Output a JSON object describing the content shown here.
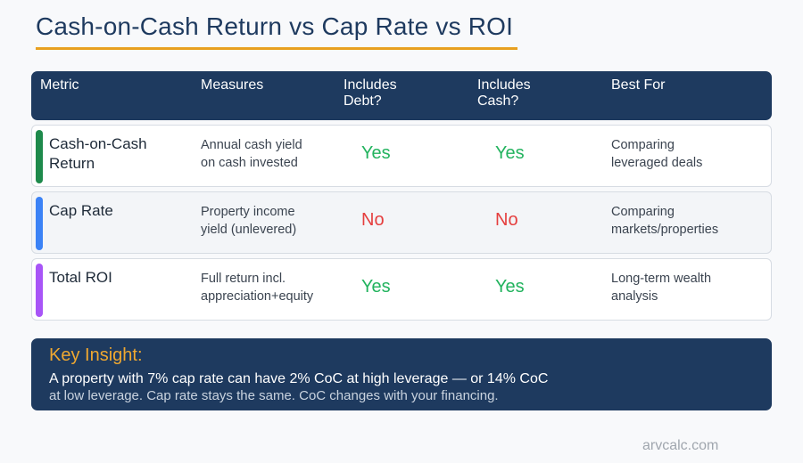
{
  "title": "Cash-on-Cash Return vs Cap Rate vs ROI",
  "table": {
    "headers": {
      "metric": "Metric",
      "measures": "Measures",
      "includes_debt_1": "Includes",
      "includes_debt_2": "Debt?",
      "includes_cash_1": "Includes",
      "includes_cash_2": "Cash?",
      "best_for": "Best For"
    },
    "rows": [
      {
        "metric_1": "Cash-on-Cash",
        "metric_2": "Return",
        "measures_1": "Annual cash yield",
        "measures_2": "on cash invested",
        "includes_debt": "Yes",
        "includes_cash": "Yes",
        "best_for_1": "Comparing",
        "best_for_2": "leveraged deals",
        "accent": "#1e8a4c",
        "background": "#ffffff"
      },
      {
        "metric_1": "Cap Rate",
        "metric_2": "",
        "measures_1": "Property income",
        "measures_2": "yield (unlevered)",
        "includes_debt": "No",
        "includes_cash": "No",
        "best_for_1": "Comparing",
        "best_for_2": "markets/properties",
        "accent": "#3b82f6",
        "background": "#f3f5f8"
      },
      {
        "metric_1": "Total ROI",
        "metric_2": "",
        "measures_1": "Full return incl.",
        "measures_2": "appreciation+equity",
        "includes_debt": "Yes",
        "includes_cash": "Yes",
        "best_for_1": "Long-term wealth",
        "best_for_2": "analysis",
        "accent": "#a855f7",
        "background": "#ffffff"
      }
    ]
  },
  "insight": {
    "label": "Key Insight:",
    "line1": "A property with 7% cap rate can have 2% CoC at high leverage — or 14% CoC",
    "line2": "at low leverage. Cap rate stays the same. CoC changes with your financing."
  },
  "footer": "arvcalc.com",
  "colors": {
    "yes": "#22b35e",
    "no": "#e53e3e",
    "header_bg": "#1e3a5f",
    "accent_gold": "#e8a020"
  }
}
